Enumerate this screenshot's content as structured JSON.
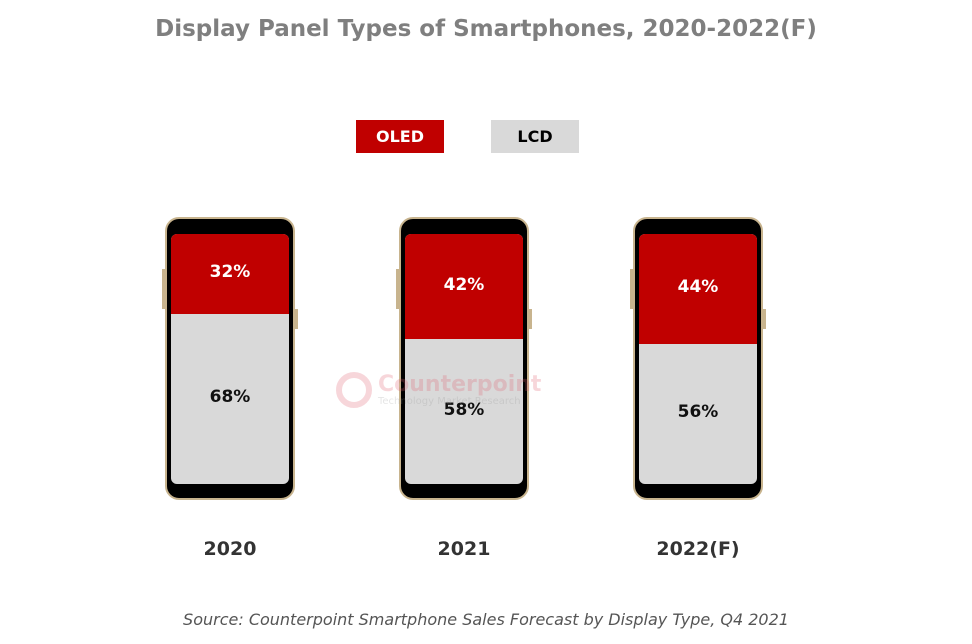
{
  "chart_data": {
    "type": "bar",
    "stacked": true,
    "title": "Display Panel Types of Smartphones, 2020-2022(F)",
    "categories": [
      "2020",
      "2021",
      "2022(F)"
    ],
    "series": [
      {
        "name": "OLED",
        "values": [
          32,
          42,
          44
        ],
        "labels": [
          "32%",
          "42%",
          "44%"
        ],
        "color": "#c00000"
      },
      {
        "name": "LCD",
        "values": [
          68,
          58,
          56
        ],
        "labels": [
          "68%",
          "58%",
          "56%"
        ],
        "color": "#d9d9d9"
      }
    ],
    "legend": {
      "placement": "top"
    },
    "source": "Source: Counterpoint Smartphone Sales Forecast by Display Type, Q4 2021",
    "watermark": {
      "brand": "Counterpoint",
      "tagline": "Technology Market Research"
    }
  }
}
